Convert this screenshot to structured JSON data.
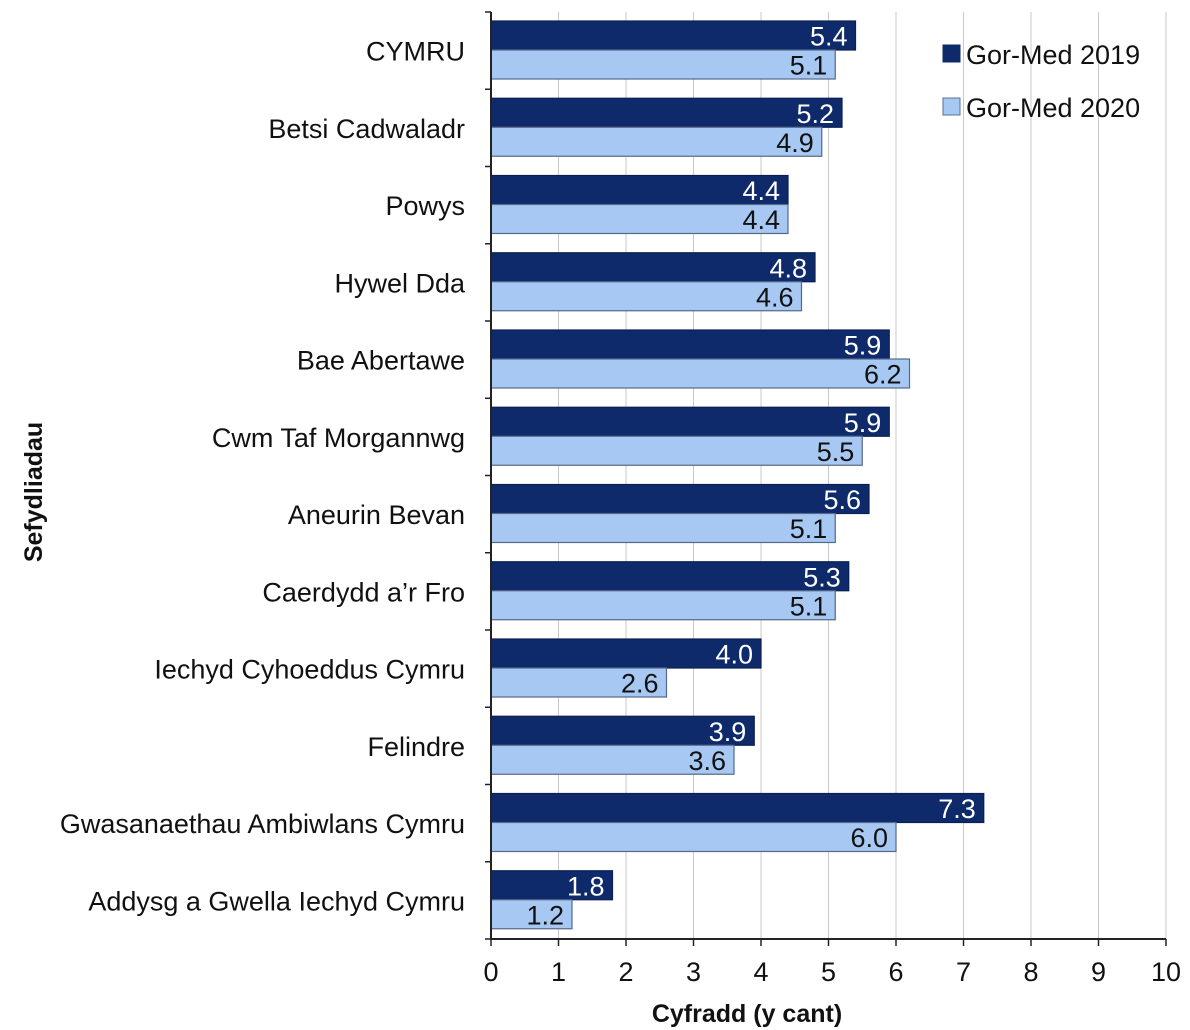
{
  "chart_data": {
    "type": "bar",
    "orientation": "horizontal",
    "xlabel": "Cyfradd (y cant)",
    "ylabel": "Sefydliadau",
    "xlim": [
      0,
      10
    ],
    "x_ticks": [
      "0",
      "1",
      "2",
      "3",
      "4",
      "5",
      "6",
      "7",
      "8",
      "9",
      "10"
    ],
    "grid": "vertical",
    "legend_position": "top-right",
    "categories": [
      "CYMRU",
      "Betsi Cadwaladr",
      "Powys",
      "Hywel Dda",
      "Bae Abertawe",
      "Cwm Taf Morgannwg",
      "Aneurin Bevan",
      "Caerdydd a’r Fro",
      "Iechyd Cyhoeddus Cymru",
      "Felindre",
      "Gwasanaethau Ambiwlans Cymru",
      "Addysg a Gwella Iechyd Cymru"
    ],
    "series": [
      {
        "name": "Gor-Med 2019",
        "color": "#0e2a6b",
        "label_color": "#ffffff",
        "values": [
          5.4,
          5.2,
          4.4,
          4.8,
          5.9,
          5.9,
          5.6,
          5.3,
          4.0,
          3.9,
          7.3,
          1.8
        ],
        "labels": [
          "5.4",
          "5.2",
          "4.4",
          "4.8",
          "5.9",
          "5.9",
          "5.6",
          "5.3",
          "4.0",
          "3.9",
          "7.3",
          "1.8"
        ]
      },
      {
        "name": "Gor-Med 2020",
        "color": "#a7c8f3",
        "label_color": "#111111",
        "values": [
          5.1,
          4.9,
          4.4,
          4.6,
          6.2,
          5.5,
          5.1,
          5.1,
          2.6,
          3.6,
          6.0,
          1.2
        ],
        "labels": [
          "5.1",
          "4.9",
          "4.4",
          "4.6",
          "6.2",
          "5.5",
          "5.1",
          "5.1",
          "2.6",
          "3.6",
          "6.0",
          "1.2"
        ]
      }
    ]
  }
}
